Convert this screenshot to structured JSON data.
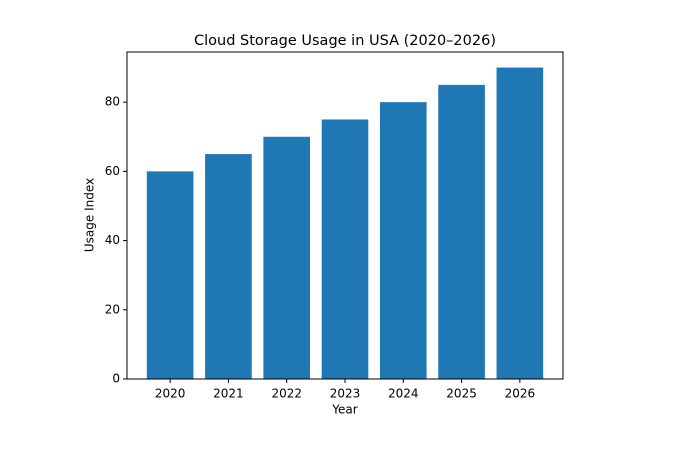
{
  "chart_data": {
    "type": "bar",
    "title": "Cloud Storage Usage in USA (2020–2026)",
    "x_label": "Year",
    "y_label": "Usage Index",
    "x": [
      2020,
      2021,
      2022,
      2023,
      2024,
      2025,
      2026
    ],
    "values": [
      60,
      65,
      70,
      75,
      80,
      85,
      90
    ],
    "color": "#1f77b4",
    "xlim": [
      2019.26,
      2026.74
    ],
    "xticks": [
      2020,
      2021,
      2022,
      2023,
      2024,
      2025,
      2026
    ],
    "ylim": [
      0,
      94.5
    ],
    "yticks": [
      0,
      20,
      40,
      60,
      80
    ],
    "grid": false
  }
}
